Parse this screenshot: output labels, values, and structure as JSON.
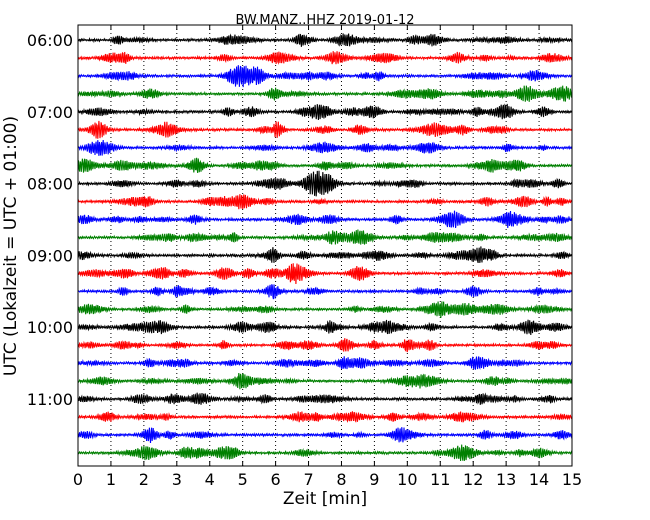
{
  "chart_data": {
    "type": "line",
    "title": "BW.MANZ..HHZ 2019-01-12",
    "xlabel": "Zeit  [min]",
    "ylabel": "UTC (Lokalzeit = UTC + 01:00)",
    "xlim": [
      0,
      15
    ],
    "x_ticks": [
      "0",
      "1",
      "2",
      "3",
      "4",
      "5",
      "6",
      "7",
      "8",
      "9",
      "10",
      "11",
      "12",
      "13",
      "14",
      "15"
    ],
    "y_ticks": [
      "06:00",
      "07:00",
      "08:00",
      "09:00",
      "10:00",
      "11:00"
    ],
    "grid": "vertical dotted at each minute",
    "trace_colors": [
      "#000000",
      "#ff0000",
      "#0000ff",
      "#008000"
    ],
    "trace_start_times": [
      "06:00",
      "06:15",
      "06:30",
      "06:45",
      "07:00",
      "07:15",
      "07:30",
      "07:45",
      "08:00",
      "08:15",
      "08:30",
      "08:45",
      "09:00",
      "09:15",
      "09:30",
      "09:45",
      "10:00",
      "10:15",
      "10:30",
      "10:45",
      "11:00",
      "11:15",
      "11:30",
      "11:45"
    ]
  }
}
